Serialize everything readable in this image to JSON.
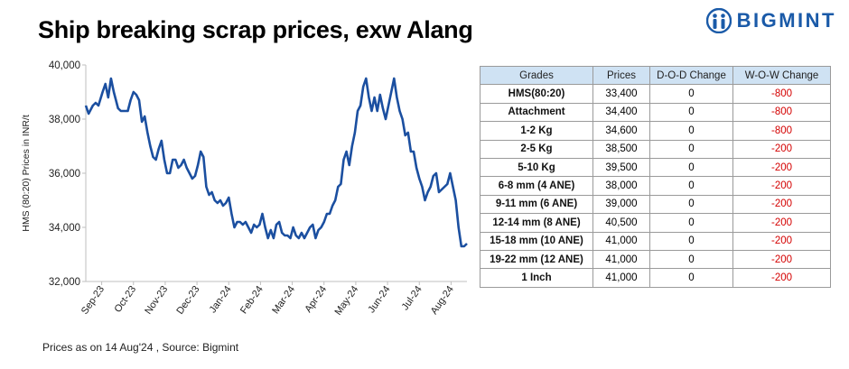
{
  "page": {
    "title": "Ship breaking scrap prices, exw Alang",
    "brand": "BIGMINT",
    "footer": "Prices as on 14 Aug'24 , Source: Bigmint"
  },
  "colors": {
    "line": "#1b4fa0",
    "brand": "#1a5aa8",
    "table_header_bg": "#cfe2f3",
    "negative": "#d40000"
  },
  "icons": {
    "brand_logo": "bigmint-logo-icon"
  },
  "chart_data": {
    "type": "line",
    "title": "",
    "ylabel": "HMS (80:20) Prices in INR/t",
    "xlabel": "",
    "ylim": [
      32000,
      40000
    ],
    "yticks": [
      32000,
      34000,
      36000,
      38000,
      40000
    ],
    "ytick_labels": [
      "32,000",
      "34,000",
      "36,000",
      "38,000",
      "40,000"
    ],
    "xtick_labels": [
      "Sep-23",
      "Oct-23",
      "Nov-23",
      "Dec-23",
      "Jan-24",
      "Feb-24",
      "Mar-24",
      "Apr-24",
      "May-24",
      "Jun-24",
      "Jul-24",
      "Aug-24"
    ],
    "grid": false,
    "legend": "none",
    "series": [
      {
        "values": [
          [
            0,
            38500
          ],
          [
            2,
            38200
          ],
          [
            5,
            38500
          ],
          [
            7,
            38600
          ],
          [
            9,
            38500
          ],
          [
            12,
            39000
          ],
          [
            14,
            39300
          ],
          [
            16,
            38800
          ],
          [
            18,
            39500
          ],
          [
            20,
            39000
          ],
          [
            23,
            38400
          ],
          [
            25,
            38300
          ],
          [
            28,
            38300
          ],
          [
            30,
            38300
          ],
          [
            32,
            38700
          ],
          [
            34,
            39000
          ],
          [
            36,
            38900
          ],
          [
            38,
            38700
          ],
          [
            40,
            37900
          ],
          [
            42,
            38100
          ],
          [
            44,
            37500
          ],
          [
            46,
            37000
          ],
          [
            48,
            36600
          ],
          [
            50,
            36500
          ],
          [
            52,
            36900
          ],
          [
            54,
            37200
          ],
          [
            56,
            36500
          ],
          [
            58,
            36000
          ],
          [
            60,
            36000
          ],
          [
            62,
            36500
          ],
          [
            64,
            36500
          ],
          [
            66,
            36200
          ],
          [
            68,
            36300
          ],
          [
            70,
            36500
          ],
          [
            72,
            36200
          ],
          [
            74,
            36000
          ],
          [
            76,
            35800
          ],
          [
            78,
            35900
          ],
          [
            80,
            36300
          ],
          [
            82,
            36800
          ],
          [
            84,
            36600
          ],
          [
            86,
            35500
          ],
          [
            88,
            35200
          ],
          [
            90,
            35300
          ],
          [
            92,
            35000
          ],
          [
            94,
            34900
          ],
          [
            96,
            35000
          ],
          [
            98,
            34800
          ],
          [
            100,
            34900
          ],
          [
            102,
            35100
          ],
          [
            104,
            34500
          ],
          [
            106,
            34000
          ],
          [
            108,
            34200
          ],
          [
            110,
            34200
          ],
          [
            112,
            34100
          ],
          [
            114,
            34200
          ],
          [
            116,
            34000
          ],
          [
            118,
            33800
          ],
          [
            120,
            34100
          ],
          [
            122,
            34000
          ],
          [
            124,
            34100
          ],
          [
            126,
            34500
          ],
          [
            128,
            34000
          ],
          [
            130,
            33600
          ],
          [
            132,
            33900
          ],
          [
            134,
            33600
          ],
          [
            136,
            34100
          ],
          [
            138,
            34200
          ],
          [
            140,
            33800
          ],
          [
            142,
            33700
          ],
          [
            144,
            33700
          ],
          [
            146,
            33600
          ],
          [
            148,
            34000
          ],
          [
            150,
            33700
          ],
          [
            152,
            33600
          ],
          [
            154,
            33800
          ],
          [
            156,
            33600
          ],
          [
            158,
            33800
          ],
          [
            160,
            34000
          ],
          [
            162,
            34100
          ],
          [
            164,
            33600
          ],
          [
            166,
            33900
          ],
          [
            168,
            34000
          ],
          [
            170,
            34200
          ],
          [
            172,
            34500
          ],
          [
            174,
            34500
          ],
          [
            176,
            34800
          ],
          [
            178,
            35000
          ],
          [
            180,
            35500
          ],
          [
            182,
            35600
          ],
          [
            184,
            36500
          ],
          [
            186,
            36800
          ],
          [
            188,
            36300
          ],
          [
            190,
            37000
          ],
          [
            192,
            37500
          ],
          [
            194,
            38300
          ],
          [
            196,
            38500
          ],
          [
            198,
            39200
          ],
          [
            200,
            39500
          ],
          [
            202,
            38800
          ],
          [
            204,
            38300
          ],
          [
            206,
            38800
          ],
          [
            208,
            38300
          ],
          [
            210,
            38900
          ],
          [
            212,
            38400
          ],
          [
            214,
            38000
          ],
          [
            216,
            38500
          ],
          [
            218,
            39000
          ],
          [
            220,
            39500
          ],
          [
            222,
            38800
          ],
          [
            224,
            38300
          ],
          [
            226,
            38000
          ],
          [
            228,
            37400
          ],
          [
            230,
            37500
          ],
          [
            232,
            36800
          ],
          [
            234,
            36800
          ],
          [
            236,
            36200
          ],
          [
            238,
            35800
          ],
          [
            240,
            35500
          ],
          [
            242,
            35000
          ],
          [
            244,
            35300
          ],
          [
            246,
            35500
          ],
          [
            248,
            35900
          ],
          [
            250,
            36000
          ],
          [
            252,
            35300
          ],
          [
            254,
            35400
          ],
          [
            256,
            35500
          ],
          [
            258,
            35600
          ],
          [
            260,
            36000
          ],
          [
            262,
            35500
          ],
          [
            264,
            35000
          ],
          [
            266,
            34000
          ],
          [
            268,
            33300
          ],
          [
            270,
            33300
          ],
          [
            272,
            33400
          ]
        ]
      }
    ]
  },
  "table": {
    "headers": [
      "Grades",
      "Prices",
      "D-O-D Change",
      "W-O-W Change"
    ],
    "rows": [
      [
        "HMS(80:20)",
        "33,400",
        "0",
        "-800"
      ],
      [
        "Attachment",
        "34,400",
        "0",
        "-800"
      ],
      [
        "1-2 Kg",
        "34,600",
        "0",
        "-800"
      ],
      [
        "2-5 Kg",
        "38,500",
        "0",
        "-200"
      ],
      [
        "5-10 Kg",
        "39,500",
        "0",
        "-200"
      ],
      [
        "6-8 mm (4 ANE)",
        "38,000",
        "0",
        "-200"
      ],
      [
        "9-11 mm (6 ANE)",
        "39,000",
        "0",
        "-200"
      ],
      [
        "12-14 mm (8 ANE)",
        "40,500",
        "0",
        "-200"
      ],
      [
        "15-18 mm (10 ANE)",
        "41,000",
        "0",
        "-200"
      ],
      [
        "19-22 mm (12 ANE)",
        "41,000",
        "0",
        "-200"
      ],
      [
        "1 Inch",
        "41,000",
        "0",
        "-200"
      ]
    ]
  }
}
